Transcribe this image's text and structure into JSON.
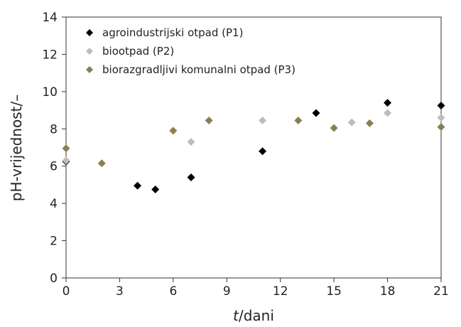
{
  "chart_data": {
    "type": "scatter",
    "xlabel_var": "t",
    "xlabel_unit": "dani",
    "ylabel": "pH-vrijednost/–",
    "xlim": [
      0,
      21
    ],
    "ylim": [
      0,
      14
    ],
    "xticks": [
      0,
      3,
      6,
      9,
      12,
      15,
      18,
      21
    ],
    "yticks": [
      0,
      2,
      4,
      6,
      8,
      10,
      12,
      14
    ],
    "grid": false,
    "legend_position": "top-left",
    "series": [
      {
        "name": "agroindustrijski otpad (P1)",
        "color": "#000000",
        "marker": "diamond",
        "points": [
          [
            0,
            6.25
          ],
          [
            4,
            4.95
          ],
          [
            5,
            4.75
          ],
          [
            7,
            5.4
          ],
          [
            11,
            6.8
          ],
          [
            14,
            8.85
          ],
          [
            18,
            9.4
          ],
          [
            21,
            9.25
          ]
        ]
      },
      {
        "name": "biootpad (P2)",
        "color": "#bdbdbd",
        "marker": "diamond",
        "points": [
          [
            0,
            6.3
          ],
          [
            7,
            7.3
          ],
          [
            11,
            8.45
          ],
          [
            16,
            8.35
          ],
          [
            18,
            8.85
          ],
          [
            21,
            8.6
          ]
        ]
      },
      {
        "name": "biorazgradljivi komunalni otpad (P3)",
        "color": "#8a7f52",
        "marker": "diamond",
        "points": [
          [
            0,
            6.95
          ],
          [
            2,
            6.15
          ],
          [
            6,
            7.9
          ],
          [
            8,
            8.45
          ],
          [
            13,
            8.45
          ],
          [
            15,
            8.05
          ],
          [
            17,
            8.3
          ],
          [
            21,
            8.1
          ]
        ]
      }
    ]
  }
}
